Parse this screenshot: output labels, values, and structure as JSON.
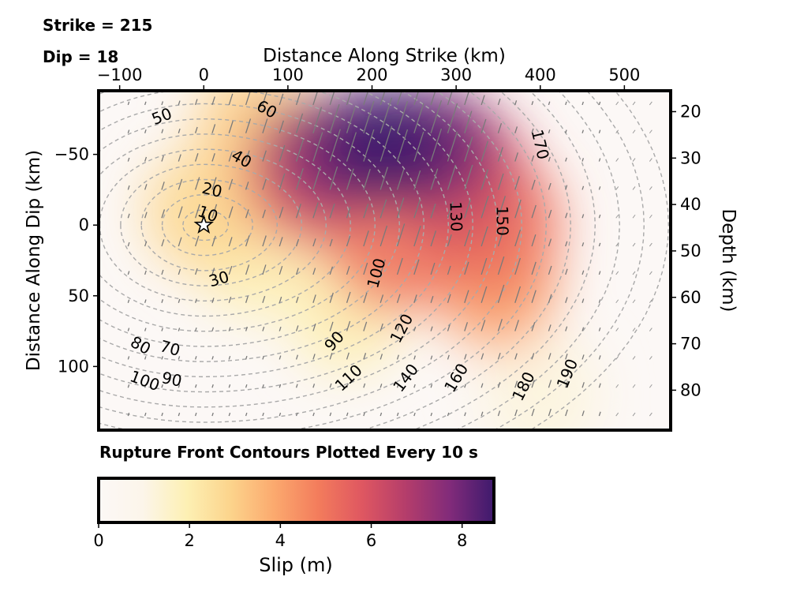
{
  "header": {
    "strike": "Strike = 215",
    "dip": "Dip = 18"
  },
  "chart_data": {
    "type": "heatmap",
    "title": "",
    "xlabel": "Distance Along Strike (km)",
    "ylabel": "Distance Along Dip (km)",
    "y2label": "Depth (km)",
    "xlim": [
      -125,
      555
    ],
    "ylim": [
      -95,
      145
    ],
    "y_inverted": true,
    "y2lim": [
      15.5,
      88.6
    ],
    "xticks": [
      "−100",
      "0",
      "100",
      "200",
      "300",
      "400",
      "500"
    ],
    "xtick_values": [
      -100,
      0,
      100,
      200,
      300,
      400,
      500
    ],
    "yticks": [
      "−50",
      "0",
      "50",
      "100"
    ],
    "ytick_values": [
      -50,
      0,
      50,
      100
    ],
    "y2ticks": [
      "20",
      "30",
      "40",
      "50",
      "60",
      "70",
      "80"
    ],
    "y2tick_values": [
      20,
      30,
      40,
      50,
      60,
      70,
      80
    ],
    "hypocenter": {
      "x": 0,
      "y": 0
    },
    "slip_patches": [
      {
        "x": 210,
        "y": -55,
        "slip": 8.7
      },
      {
        "x": 270,
        "y": -55,
        "slip": 8.0
      },
      {
        "x": 150,
        "y": -50,
        "slip": 7.5
      },
      {
        "x": 300,
        "y": -35,
        "slip": 6.0
      },
      {
        "x": 130,
        "y": -35,
        "slip": 5.5
      },
      {
        "x": 340,
        "y": 0,
        "slip": 5.0
      },
      {
        "x": 350,
        "y": 45,
        "slip": 4.0
      },
      {
        "x": 230,
        "y": 10,
        "slip": 5.0
      },
      {
        "x": 0,
        "y": -10,
        "slip": 2.8
      },
      {
        "x": 60,
        "y": -70,
        "slip": 3.0
      },
      {
        "x": 60,
        "y": 20,
        "slip": 2.0
      },
      {
        "x": 170,
        "y": 60,
        "slip": 2.0
      },
      {
        "x": 400,
        "y": 120,
        "slip": 1.2
      }
    ],
    "rupture_time_contours": [
      {
        "label": "10",
        "x": 5,
        "y": -8
      },
      {
        "label": "20",
        "x": 10,
        "y": -25
      },
      {
        "label": "30",
        "x": 18,
        "y": 38
      },
      {
        "label": "40",
        "x": 45,
        "y": -47
      },
      {
        "label": "50",
        "x": -50,
        "y": -77
      },
      {
        "label": "60",
        "x": 75,
        "y": -82
      },
      {
        "label": "70",
        "x": -40,
        "y": 87
      },
      {
        "label": "80",
        "x": -75,
        "y": 85
      },
      {
        "label": "90",
        "x": -38,
        "y": 109
      },
      {
        "label": "90",
        "x": 155,
        "y": 82
      },
      {
        "label": "100",
        "x": -70,
        "y": 110
      },
      {
        "label": "100",
        "x": 205,
        "y": 34
      },
      {
        "label": "110",
        "x": 172,
        "y": 108
      },
      {
        "label": "120",
        "x": 235,
        "y": 73
      },
      {
        "label": "130",
        "x": 300,
        "y": -6
      },
      {
        "label": "140",
        "x": 240,
        "y": 108
      },
      {
        "label": "150",
        "x": 355,
        "y": -3
      },
      {
        "label": "160",
        "x": 300,
        "y": 108
      },
      {
        "label": "170",
        "x": 400,
        "y": -57
      },
      {
        "label": "180",
        "x": 380,
        "y": 114
      },
      {
        "label": "190",
        "x": 432,
        "y": 105
      }
    ],
    "annotation": "Rupture Front Contours Plotted Every 10 s",
    "colorbar": {
      "label": "Slip (m)",
      "range": [
        0,
        8.7
      ],
      "ticks": [
        "0",
        "2",
        "4",
        "6",
        "8"
      ],
      "tick_values": [
        0,
        2,
        4,
        6,
        8
      ],
      "colormap": [
        "#fcf8f6",
        "#fcf5ea",
        "#fdf0b4",
        "#fcd48c",
        "#fba96e",
        "#f37c5c",
        "#df5761",
        "#b43d6b",
        "#812b7a",
        "#3e1a6d"
      ]
    }
  }
}
